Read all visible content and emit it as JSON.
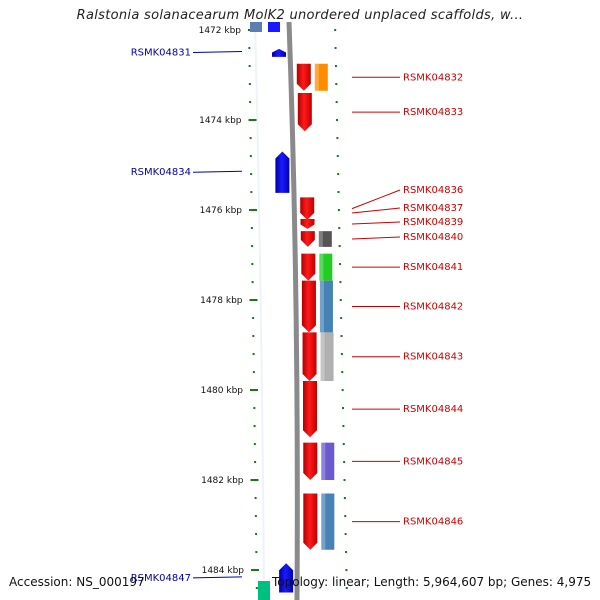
{
  "title": "Ralstonia solanacearum MolK2 unordered unplaced scaffolds, w...",
  "footer": {
    "accession": "Accession: NS_000197",
    "info": "Topology: linear; Length: 5,964,607 bp; Genes: 4,975"
  },
  "colors": {
    "forward": "#ff0000",
    "reverse": "#0000ff",
    "tick": "#1a7a1a",
    "backbone": "#8a8a8a",
    "label_reverse": "#0000aa",
    "label_forward": "#cc0000"
  },
  "axis": {
    "unit": "kbp"
  },
  "scale_ticks": [
    {
      "kbp": 1472,
      "label": "1472 kbp"
    },
    {
      "kbp": 1474,
      "label": "1474 kbp"
    },
    {
      "kbp": 1476,
      "label": "1476 kbp"
    },
    {
      "kbp": 1478,
      "label": "1478 kbp"
    },
    {
      "kbp": 1480,
      "label": "1480 kbp"
    },
    {
      "kbp": 1482,
      "label": "1482 kbp"
    },
    {
      "kbp": 1484,
      "label": "1484 kbp"
    }
  ],
  "genes": [
    {
      "id": "RSMK04831",
      "strand": "-",
      "start": 1472.42,
      "end": 1472.58,
      "color": "#0000ff"
    },
    {
      "id": "RSMK04832",
      "strand": "+",
      "start": 1472.75,
      "end": 1473.35,
      "color": "#ff0000",
      "cog_color": "#ff8c00"
    },
    {
      "id": "RSMK04833",
      "strand": "+",
      "start": 1473.4,
      "end": 1474.25,
      "color": "#ff0000"
    },
    {
      "id": "RSMK04834",
      "strand": "-",
      "start": 1474.7,
      "end": 1475.62,
      "color": "#0000ff"
    },
    {
      "id": "RSMK04836",
      "strand": "+",
      "start": 1475.72,
      "end": 1476.22,
      "color": "#ff0000"
    },
    {
      "id": "RSMK04837",
      "strand": "+",
      "start": 1476.22,
      "end": 1476.22,
      "color": "#ff0000",
      "hidden": true
    },
    {
      "id": "RSMK04839",
      "strand": "+",
      "start": 1476.2,
      "end": 1476.42,
      "color": "#ff0000"
    },
    {
      "id": "RSMK04840",
      "strand": "+",
      "start": 1476.47,
      "end": 1476.82,
      "color": "#ff0000",
      "cog_color": "#555555"
    },
    {
      "id": "RSMK04841",
      "strand": "+",
      "start": 1476.97,
      "end": 1477.57,
      "color": "#ff0000",
      "cog_color": "#22cc22"
    },
    {
      "id": "RSMK04842",
      "strand": "+",
      "start": 1477.57,
      "end": 1478.72,
      "color": "#ff0000",
      "cog_color": "#4682b4"
    },
    {
      "id": "RSMK04843",
      "strand": "+",
      "start": 1478.72,
      "end": 1479.8,
      "color": "#ff0000",
      "cog_color": "#b0b0b0"
    },
    {
      "id": "RSMK04844",
      "strand": "+",
      "start": 1479.8,
      "end": 1481.05,
      "color": "#ff0000"
    },
    {
      "id": "RSMK04845",
      "strand": "+",
      "start": 1481.17,
      "end": 1482.0,
      "color": "#ff0000",
      "cog_color": "#6a5acd"
    },
    {
      "id": "RSMK04846",
      "strand": "+",
      "start": 1482.3,
      "end": 1483.55,
      "color": "#ff0000",
      "cog_color": "#4682b4"
    },
    {
      "id": "RSMK04847",
      "strand": "-",
      "start": 1483.85,
      "end": 1484.5,
      "color": "#0000ff"
    }
  ]
}
